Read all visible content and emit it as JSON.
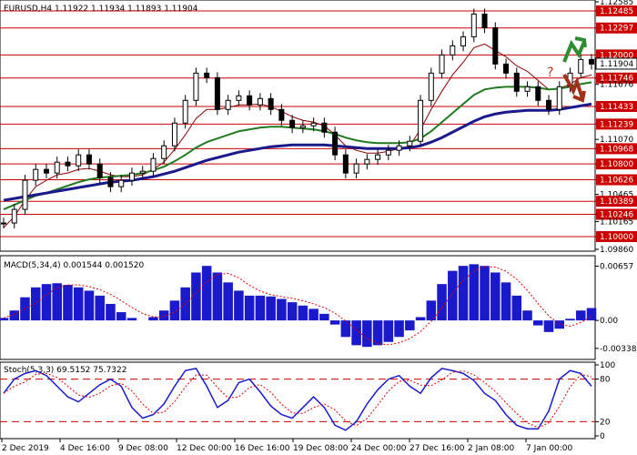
{
  "header": {
    "symbol": "EURUSD,H4",
    "open": "1.11922",
    "high": "1.11934",
    "low": "1.11893",
    "close": "1.11904"
  },
  "colors": {
    "candle": "#000000",
    "resistance": "#cc0000",
    "ma_fast": "#8b0000",
    "ma_mid": "#1e7b1e",
    "ma_slow": "#1a1a8c",
    "macd_hist": "#1a1acc",
    "macd_signal": "#dd0000",
    "stoch_main": "#1a1acc",
    "stoch_signal": "#dd0000",
    "arrow_up": "#2e8b2e",
    "arrow_down": "#a0301a",
    "question": "#c0392b",
    "grid_bg": "#ffffff"
  },
  "price_axis": {
    "ticks": [
      "1.12585",
      "1.12485",
      "1.12297",
      "1.12000",
      "1.11904",
      "1.11746",
      "1.11676",
      "1.11433",
      "1.11239",
      "1.11070",
      "1.10968",
      "1.10800",
      "1.10626",
      "1.10465",
      "1.10389",
      "1.10246",
      "1.10165",
      "1.10000",
      "1.09860"
    ],
    "red_levels": [
      "1.12485",
      "1.12297",
      "1.12000",
      "1.11746",
      "1.11433",
      "1.11239",
      "1.10968",
      "1.10800",
      "1.10626",
      "1.10389",
      "1.10246",
      "1.10000"
    ],
    "current": "1.11904",
    "ylim": [
      1.0986,
      1.12585
    ]
  },
  "time_axis": {
    "labels": [
      "2 Dec 2019",
      "4 Dec 16:00",
      "9 Dec 08:00",
      "12 Dec 00:00",
      "16 Dec 16:00",
      "19 Dec 08:00",
      "24 Dec 00:00",
      "27 Dec 16:00",
      "2 Jan 08:00",
      "7 Jan 00:00"
    ]
  },
  "annotation": {
    "question_mark": "?",
    "arrow_up_icon": "green-up-arrow-icon",
    "arrow_down_icon": "red-down-arrow-icon"
  },
  "macd": {
    "label": "MACD(5,34,4) 0.001544 0.001520",
    "ticks": [
      "0.00657",
      "0.00",
      "-0.003384"
    ],
    "ylim": [
      -0.0045,
      0.0075
    ]
  },
  "stoch": {
    "label": "Stoch(5,3,3) 69.5152 75.7322",
    "ticks": [
      "100",
      "80",
      "20",
      "0"
    ],
    "levels": [
      80,
      20
    ]
  },
  "chart_data": {
    "type": "candlestick",
    "title": "",
    "xlabel": "",
    "ylabel": "",
    "series": [
      {
        "name": "price_close_approx",
        "values": [
          1.1015,
          1.103,
          1.1062,
          1.1074,
          1.107,
          1.1082,
          1.1078,
          1.109,
          1.108,
          1.1065,
          1.1055,
          1.1062,
          1.107,
          1.1072,
          1.1086,
          1.11,
          1.1125,
          1.115,
          1.118,
          1.1175,
          1.114,
          1.115,
          1.1155,
          1.1145,
          1.1152,
          1.114,
          1.1128,
          1.112,
          1.1122,
          1.1125,
          1.1115,
          1.109,
          1.107,
          1.108,
          1.1085,
          1.109,
          1.1095,
          1.11,
          1.1105,
          1.115,
          1.118,
          1.12,
          1.121,
          1.122,
          1.1245,
          1.123,
          1.119,
          1.118,
          1.116,
          1.1165,
          1.115,
          1.114,
          1.1165,
          1.118,
          1.1195,
          1.119
        ]
      },
      {
        "name": "ma_fast",
        "values": [
          1.101,
          1.1022,
          1.104,
          1.1055,
          1.1062,
          1.1068,
          1.107,
          1.1074,
          1.1075,
          1.1072,
          1.1068,
          1.1066,
          1.1066,
          1.1068,
          1.1074,
          1.1082,
          1.1096,
          1.1112,
          1.113,
          1.114,
          1.114,
          1.1142,
          1.1145,
          1.1145,
          1.1146,
          1.1143,
          1.1138,
          1.1132,
          1.1128,
          1.1126,
          1.1122,
          1.1112,
          1.11,
          1.1095,
          1.1092,
          1.1092,
          1.1094,
          1.1097,
          1.11,
          1.1118,
          1.114,
          1.116,
          1.1178,
          1.1192,
          1.1208,
          1.1212,
          1.1205,
          1.1198,
          1.1188,
          1.1182,
          1.1172,
          1.1162,
          1.1163,
          1.1168,
          1.1175,
          1.1178
        ]
      },
      {
        "name": "ma_mid",
        "values": [
          1.103,
          1.1035,
          1.104,
          1.1045,
          1.1048,
          1.1052,
          1.1056,
          1.106,
          1.1063,
          1.1065,
          1.1066,
          1.1067,
          1.1068,
          1.107,
          1.1073,
          1.1077,
          1.1083,
          1.109,
          1.1098,
          1.1104,
          1.1108,
          1.1112,
          1.1116,
          1.1118,
          1.112,
          1.1121,
          1.1121,
          1.112,
          1.1119,
          1.1118,
          1.1116,
          1.1113,
          1.1109,
          1.1106,
          1.1104,
          1.1103,
          1.1103,
          1.1103,
          1.1104,
          1.1108,
          1.1116,
          1.1126,
          1.1136,
          1.1146,
          1.1156,
          1.1162,
          1.1164,
          1.1165,
          1.1165,
          1.1165,
          1.1164,
          1.1162,
          1.1163,
          1.1165,
          1.1168,
          1.117
        ]
      },
      {
        "name": "ma_slow",
        "values": [
          1.104,
          1.1042,
          1.1044,
          1.1046,
          1.1048,
          1.105,
          1.1052,
          1.1054,
          1.1056,
          1.1058,
          1.106,
          1.1061,
          1.1062,
          1.1064,
          1.1066,
          1.1069,
          1.1072,
          1.1076,
          1.108,
          1.1084,
          1.1087,
          1.109,
          1.1093,
          1.1095,
          1.1097,
          1.1099,
          1.11,
          1.1101,
          1.1101,
          1.1101,
          1.1101,
          1.11,
          1.1099,
          1.1098,
          1.1097,
          1.1097,
          1.1097,
          1.1097,
          1.1098,
          1.11,
          1.1104,
          1.1109,
          1.1115,
          1.1121,
          1.1127,
          1.1132,
          1.1135,
          1.1137,
          1.1138,
          1.1139,
          1.1139,
          1.1139,
          1.114,
          1.1142,
          1.1144,
          1.1146
        ]
      },
      {
        "name": "macd_hist",
        "values": [
          0.0003,
          0.0012,
          0.0028,
          0.004,
          0.0044,
          0.0045,
          0.0043,
          0.004,
          0.0036,
          0.003,
          0.002,
          0.001,
          0.0003,
          0.0,
          0.0004,
          0.0012,
          0.0024,
          0.004,
          0.0058,
          0.0066,
          0.0058,
          0.0046,
          0.0036,
          0.003,
          0.003,
          0.0029,
          0.0026,
          0.0022,
          0.0018,
          0.0014,
          0.0008,
          -0.0005,
          -0.002,
          -0.003,
          -0.0032,
          -0.003,
          -0.0026,
          -0.002,
          -0.0012,
          0.0004,
          0.0024,
          0.0044,
          0.006,
          0.0066,
          0.0068,
          0.0066,
          0.0058,
          0.0046,
          0.003,
          0.0012,
          -0.0006,
          -0.0014,
          -0.001,
          0.0002,
          0.0012,
          0.0015
        ]
      },
      {
        "name": "stoch_main",
        "values": [
          60,
          80,
          88,
          92,
          85,
          70,
          55,
          48,
          60,
          72,
          80,
          70,
          40,
          25,
          30,
          45,
          70,
          92,
          95,
          70,
          40,
          50,
          75,
          80,
          62,
          42,
          30,
          25,
          40,
          55,
          40,
          15,
          8,
          20,
          45,
          65,
          80,
          85,
          70,
          60,
          82,
          95,
          92,
          88,
          78,
          60,
          50,
          30,
          15,
          10,
          10,
          35,
          80,
          92,
          88,
          70
        ]
      }
    ]
  }
}
